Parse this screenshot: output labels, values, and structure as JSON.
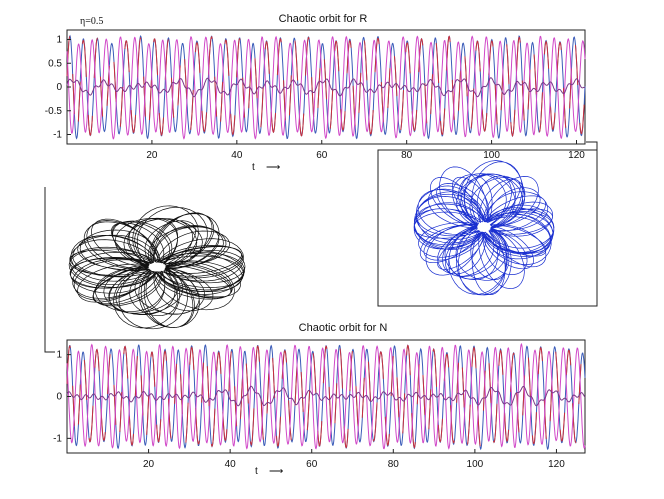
{
  "annotation": "η=0.5",
  "arrow_glyph": "⟶",
  "colors": {
    "blue": "#3a5bb8",
    "red": "#c8303c",
    "magenta": "#d048c8",
    "purple": "#7a3a88",
    "phase_black": "#111111",
    "phase_blue": "#1a2fd0"
  },
  "chart_data": [
    {
      "type": "line",
      "title": "Chaotic orbit for R",
      "xlabel": "t",
      "xlim": [
        0,
        122
      ],
      "ylim": [
        -1.2,
        1.2
      ],
      "xticks": [
        20,
        40,
        60,
        80,
        100,
        120
      ],
      "yticks": [
        1,
        0.5,
        0,
        -0.5,
        -1
      ],
      "yticklabels": [
        "1",
        "0.5",
        "0",
        "-0.5",
        "-1"
      ],
      "series_description": "three oscillating traces (two ~unit amplitude, one near zero), period ≈ 3.3",
      "period": 3.3,
      "amplitude": 1.0
    },
    {
      "type": "line",
      "title": "Chaotic orbit for N",
      "xlabel": "t",
      "xlim": [
        0,
        127
      ],
      "ylim": [
        -1.35,
        1.35
      ],
      "xticks": [
        20,
        40,
        60,
        80,
        100,
        120
      ],
      "yticks": [
        1,
        0,
        -1
      ],
      "yticklabels": [
        "1",
        "0",
        "-1"
      ],
      "period": 3.3,
      "amplitude": 1.15
    },
    {
      "type": "scatter",
      "title": "",
      "description": "phase portrait of N (black loops)",
      "aspect": [
        1.0,
        0.55
      ]
    },
    {
      "type": "scatter",
      "title": "",
      "description": "phase portrait of R (blue loops)",
      "aspect": [
        0.85,
        1.0
      ]
    }
  ]
}
